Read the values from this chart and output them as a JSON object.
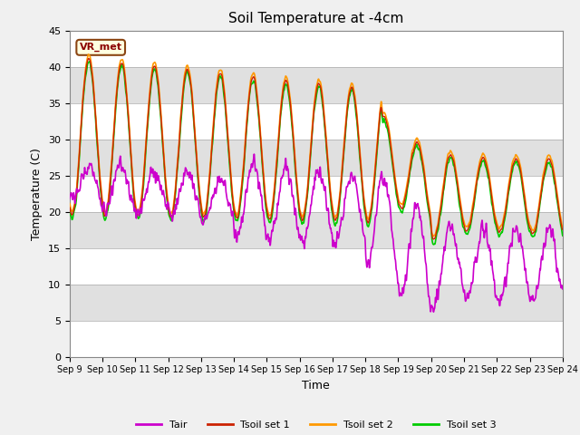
{
  "title": "Soil Temperature at -4cm",
  "xlabel": "Time",
  "ylabel": "Temperature (C)",
  "ylim": [
    0,
    45
  ],
  "yticks": [
    0,
    5,
    10,
    15,
    20,
    25,
    30,
    35,
    40,
    45
  ],
  "annotation_text": "VR_met",
  "colors": {
    "Tair": "#cc00cc",
    "Tsoil_set1": "#cc2200",
    "Tsoil_set2": "#ff9900",
    "Tsoil_set3": "#00cc00"
  },
  "legend_labels": [
    "Tair",
    "Tsoil set 1",
    "Tsoil set 2",
    "Tsoil set 3"
  ],
  "n_days": 15,
  "start_day": 9,
  "points_per_day": 144
}
